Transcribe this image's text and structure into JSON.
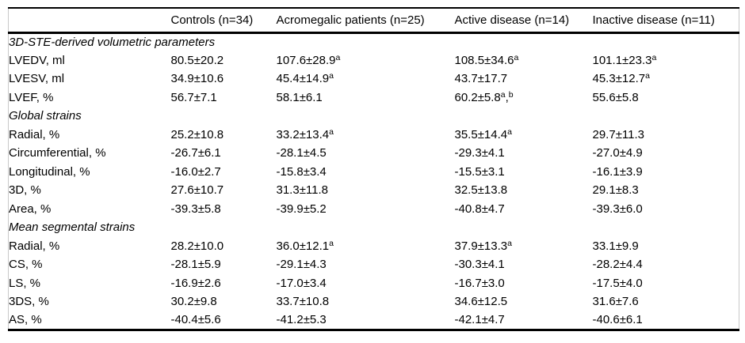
{
  "table": {
    "columns": [
      "Controls (n=34)",
      "Acromegalic patients (n=25)",
      "Active disease (n=14)",
      "Inactive disease (n=11)"
    ],
    "sections": [
      {
        "title": "3D-STE-derived volumetric parameters",
        "rows": [
          {
            "label": "LVEDV, ml",
            "values": [
              "80.5±20.2",
              {
                "v": "107.6±28.9",
                "sup": [
                  "a"
                ]
              },
              {
                "v": "108.5±34.6",
                "sup": [
                  "a"
                ]
              },
              {
                "v": "101.1±23.3",
                "sup": [
                  "a"
                ]
              }
            ]
          },
          {
            "label": "LVESV, ml",
            "values": [
              "34.9±10.6",
              {
                "v": "45.4±14.9",
                "sup": [
                  "a"
                ]
              },
              "43.7±17.7",
              {
                "v": "45.3±12.7",
                "sup": [
                  "a"
                ]
              }
            ]
          },
          {
            "label": "LVEF, %",
            "values": [
              "56.7±7.1",
              "58.1±6.1",
              {
                "v": "60.2±5.8",
                "sup": [
                  "a",
                  "b"
                ]
              },
              "55.6±5.8"
            ]
          }
        ]
      },
      {
        "title": "Global strains",
        "rows": [
          {
            "label": "Radial, %",
            "values": [
              "25.2±10.8",
              {
                "v": "33.2±13.4",
                "sup": [
                  "a"
                ]
              },
              {
                "v": "35.5±14.4",
                "sup": [
                  "a"
                ]
              },
              "29.7±11.3"
            ]
          },
          {
            "label": "Circumferential, %",
            "values": [
              "-26.7±6.1",
              "-28.1±4.5",
              "-29.3±4.1",
              "-27.0±4.9"
            ]
          },
          {
            "label": "Longitudinal, %",
            "values": [
              "-16.0±2.7",
              "-15.8±3.4",
              "-15.5±3.1",
              "-16.1±3.9"
            ]
          },
          {
            "label": "3D, %",
            "values": [
              "27.6±10.7",
              "31.3±11.8",
              "32.5±13.8",
              "29.1±8.3"
            ]
          },
          {
            "label": "Area, %",
            "values": [
              "-39.3±5.8",
              "-39.9±5.2",
              "-40.8±4.7",
              "-39.3±6.0"
            ]
          }
        ]
      },
      {
        "title": "Mean segmental strains",
        "rows": [
          {
            "label": "Radial, %",
            "values": [
              "28.2±10.0",
              {
                "v": "36.0±12.1",
                "sup": [
                  "a"
                ]
              },
              {
                "v": "37.9±13.3",
                "sup": [
                  "a"
                ]
              },
              "33.1±9.9"
            ]
          },
          {
            "label": "CS, %",
            "values": [
              "-28.1±5.9",
              "-29.1±4.3",
              "-30.3±4.1",
              "-28.2±4.4"
            ]
          },
          {
            "label": "LS, %",
            "values": [
              "-16.9±2.6",
              "-17.0±3.4",
              "-16.7±3.0",
              "-17.5±4.0"
            ]
          },
          {
            "label": "3DS, %",
            "values": [
              "30.2±9.8",
              "33.7±10.8",
              "34.6±12.5",
              "31.6±7.6"
            ]
          },
          {
            "label": "AS, %",
            "values": [
              "-40.4±5.6",
              "-41.2±5.3",
              "-42.1±4.7",
              "-40.6±6.1"
            ]
          }
        ]
      }
    ]
  },
  "colors": {
    "background": "#ffffff",
    "text": "#000000",
    "border_strong": "#000000",
    "border_light": "#c9c9c9"
  }
}
